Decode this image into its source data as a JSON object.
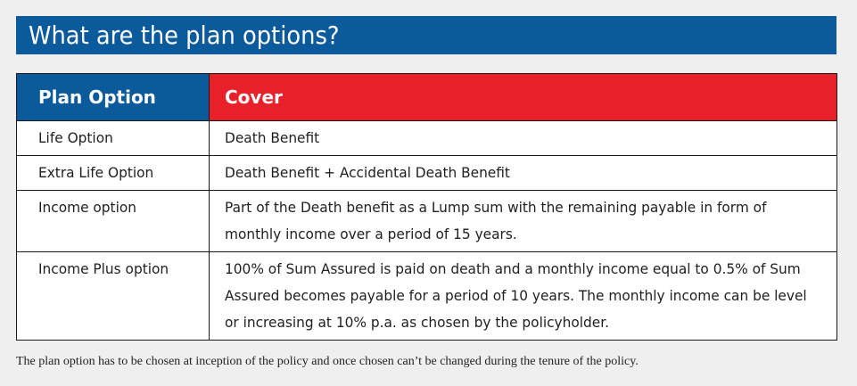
{
  "heading": "What are the plan options?",
  "table": {
    "headers": {
      "plan_option": "Plan Option",
      "cover": "Cover"
    },
    "rows": [
      {
        "plan_option": "Life Option",
        "cover": "Death Benefit"
      },
      {
        "plan_option": "Extra Life Option",
        "cover": "Death Benefit + Accidental Death Benefit"
      },
      {
        "plan_option": "Income option",
        "cover": "Part of the Death benefit as a Lump sum with the remaining payable in form of monthly income over a period of 15 years."
      },
      {
        "plan_option": "Income Plus option",
        "cover": "100% of Sum Assured is paid on death and a monthly income equal to 0.5% of Sum Assured becomes payable for a period of 10 years. The monthly income can be level or increasing at 10% p.a. as chosen by the policyholder."
      }
    ]
  },
  "footnote": "The plan option has to be chosen at inception of the policy and once chosen can’t be changed during the tenure of the policy.",
  "colors": {
    "title_bar": "#0a5a9c",
    "plan_header": "#0a5a9c",
    "cover_header": "#e8202a",
    "page_background": "#efefef"
  }
}
